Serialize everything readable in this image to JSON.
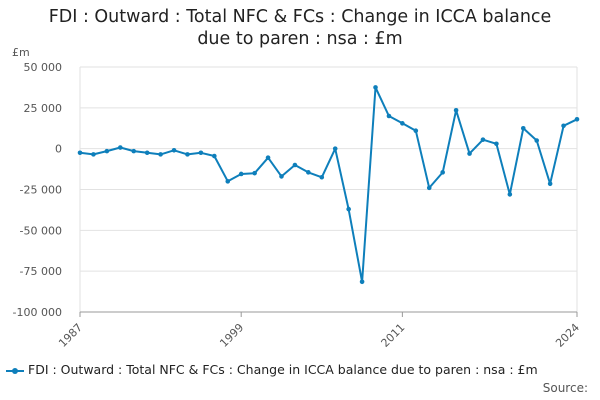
{
  "chart_data": {
    "type": "line",
    "title_line1": "FDI : Outward : Total NFC & FCs : Change in ICCA balance",
    "title_line2": "due to paren : nsa : £m",
    "unit_label": "£m",
    "ylim": [
      -100000,
      50000
    ],
    "y_ticks": [
      {
        "value": 50000,
        "label": "50 000"
      },
      {
        "value": 25000,
        "label": "25 000"
      },
      {
        "value": 0,
        "label": "0"
      },
      {
        "value": -25000,
        "label": "-25 000"
      },
      {
        "value": -50000,
        "label": "-50 000"
      },
      {
        "value": -75000,
        "label": "-75 000"
      },
      {
        "value": -100000,
        "label": "-100 000"
      }
    ],
    "x_ticks": [
      {
        "value": 1987,
        "label": "1987"
      },
      {
        "value": 1999,
        "label": "1999"
      },
      {
        "value": 2011,
        "label": "2011"
      },
      {
        "value": 2024,
        "label": "2024"
      }
    ],
    "xlim": [
      1987,
      2024
    ],
    "grid": true,
    "legend_position": "bottom",
    "series": [
      {
        "name": "FDI : Outward : Total NFC & FCs : Change in ICCA balance due to paren : nsa : £m",
        "color": "#0e7fbb",
        "x": [
          1987,
          1988,
          1989,
          1990,
          1991,
          1992,
          1993,
          1994,
          1995,
          1996,
          1997,
          1998,
          1999,
          2000,
          2001,
          2002,
          2003,
          2004,
          2005,
          2006,
          2007,
          2008,
          2009,
          2010,
          2011,
          2012,
          2013,
          2014,
          2015,
          2016,
          2017,
          2018,
          2019,
          2020,
          2021,
          2022,
          2023,
          2024
        ],
        "values": [
          -2500,
          -3500,
          -1500,
          700,
          -1500,
          -2500,
          -3500,
          -1000,
          -3500,
          -2500,
          -4500,
          -20000,
          -15500,
          -15000,
          -5500,
          -17000,
          -10000,
          -14500,
          -17500,
          0,
          -37000,
          -81500,
          37500,
          20000,
          15500,
          11000,
          -24000,
          -14500,
          23500,
          -3000,
          5500,
          3000,
          -28000,
          12500,
          5000,
          -21500,
          14000,
          18000
        ]
      }
    ]
  },
  "legend": {
    "label": "FDI : Outward : Total NFC & FCs : Change in ICCA balance due to paren : nsa : £m"
  },
  "footer": {
    "source_label": "Source:"
  }
}
